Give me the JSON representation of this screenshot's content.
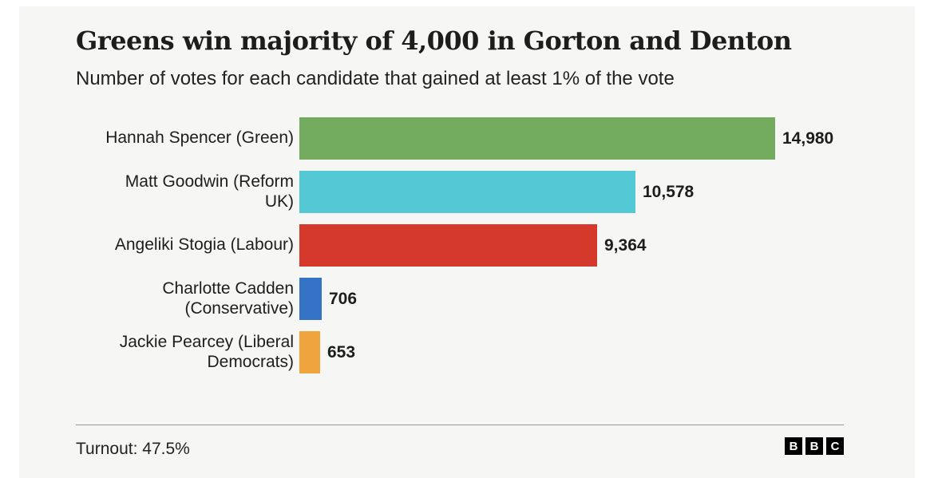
{
  "header": {
    "title": "Greens win majority of 4,000 in Gorton and Denton",
    "subtitle": "Number of votes for each candidate that gained at least 1% of the vote"
  },
  "footer": {
    "turnout": "Turnout: 47.5%",
    "logo": [
      "B",
      "B",
      "C"
    ]
  },
  "colors": {
    "background_card": "#f6f6f4",
    "page_background": "#ffffff",
    "text": "#1d1d1b",
    "divider": "#979797",
    "green_party": "#74ac5f",
    "reform_uk": "#55c8d6",
    "labour": "#d5392c",
    "conservative": "#3473c5",
    "liberal_democrats": "#efa43d"
  },
  "chart_data": {
    "type": "bar",
    "orientation": "horizontal",
    "title": "Greens win majority of 4,000 in Gorton and Denton",
    "subtitle": "Number of votes for each candidate that gained at least 1% of the vote",
    "xlabel": "",
    "ylabel": "",
    "xlim": [
      0,
      15000
    ],
    "grid": false,
    "legend": "none",
    "categories": [
      "Hannah Spencer (Green)",
      "Matt Goodwin (Reform UK)",
      "Angeliki Stogia (Labour)",
      "Charlotte Cadden (Conservative)",
      "Jackie Pearcey (Liberal Democrats)"
    ],
    "values": [
      14980,
      10578,
      9364,
      706,
      653
    ],
    "rows": [
      {
        "label_line1": "Hannah Spencer (Green)",
        "label_line2": "",
        "party": "Green",
        "value": 14980,
        "display": "14,980",
        "color": "#74ac5f"
      },
      {
        "label_line1": "Matt Goodwin (Reform",
        "label_line2": "UK)",
        "party": "Reform UK",
        "value": 10578,
        "display": "10,578",
        "color": "#55c8d6"
      },
      {
        "label_line1": "Angeliki Stogia (Labour)",
        "label_line2": "",
        "party": "Labour",
        "value": 9364,
        "display": "9,364",
        "color": "#d5392c"
      },
      {
        "label_line1": "Charlotte Cadden",
        "label_line2": "(Conservative)",
        "party": "Conservative",
        "value": 706,
        "display": "706",
        "color": "#3473c5"
      },
      {
        "label_line1": "Jackie Pearcey (Liberal",
        "label_line2": "Democrats)",
        "party": "Liberal Democrats",
        "value": 653,
        "display": "653",
        "color": "#efa43d"
      }
    ]
  }
}
